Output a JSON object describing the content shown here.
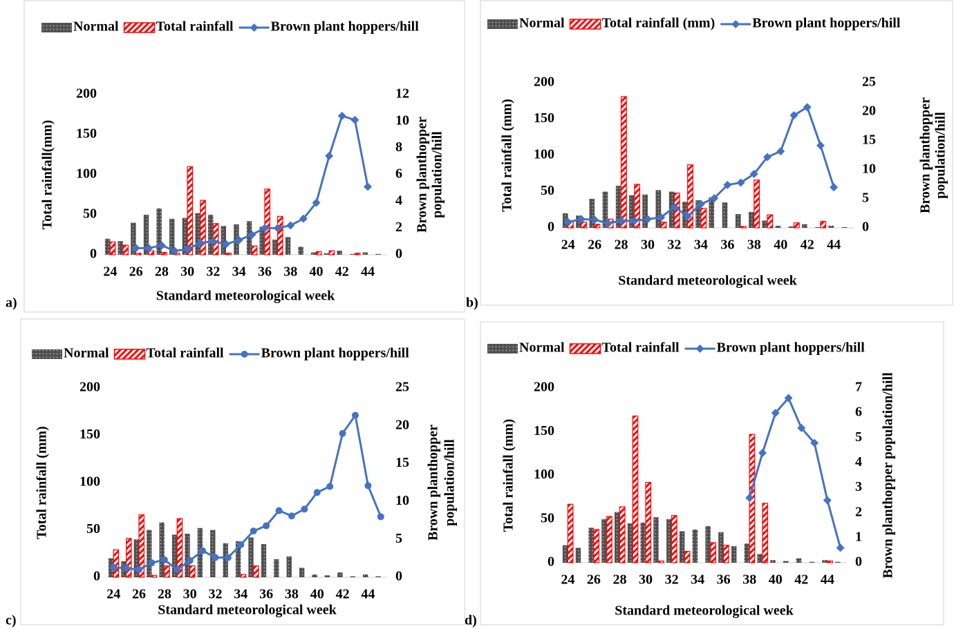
{
  "chart_data": [
    {
      "type": "combo",
      "panel_label": "a)",
      "x_label": "Standard meteorological week",
      "y_label": "Total rainfall(mm)",
      "y2_label": [
        "Brown planthopper",
        "population/hill"
      ],
      "categories": [
        24,
        null,
        26,
        null,
        28,
        null,
        30,
        null,
        32,
        null,
        34,
        null,
        36,
        null,
        38,
        null,
        40,
        null,
        42,
        null,
        44,
        null
      ],
      "ylim": [
        0,
        200
      ],
      "yticks": [
        0,
        50,
        100,
        150,
        200
      ],
      "y2lim": [
        0,
        12
      ],
      "y2ticks": [
        0,
        2,
        4,
        6,
        8,
        10,
        12
      ],
      "series": [
        {
          "name": "Normal",
          "type": "bar",
          "color": "#505050",
          "values": [
            20,
            17,
            40,
            50,
            58,
            45,
            46,
            52,
            50,
            36,
            38,
            42,
            35,
            19,
            22,
            10,
            3,
            2,
            5,
            1,
            3,
            1
          ]
        },
        {
          "name": "Total rainfall",
          "type": "bar",
          "color": "#ff0000",
          "values": [
            16,
            12,
            2,
            5,
            3,
            2,
            110,
            68,
            39,
            2,
            0,
            11,
            82,
            48,
            0,
            0,
            4,
            5,
            0,
            2,
            0,
            0
          ]
        },
        {
          "name": "Brown plant hoppers/hill",
          "type": "line",
          "axis": "y2",
          "marker": "diamond",
          "color": "#4472c4",
          "values": [
            null,
            null,
            0.5,
            0.5,
            0.7,
            0.3,
            0.4,
            0.9,
            1.0,
            0.8,
            1.1,
            1.5,
            2.0,
            2.0,
            2.2,
            2.7,
            3.9,
            7.4,
            10.4,
            10.1,
            5.1,
            null
          ]
        }
      ]
    },
    {
      "type": "combo",
      "panel_label": "b)",
      "x_label": "Standard meteorological week",
      "y_label": "Total rainfall (mm)",
      "y2_label": [
        "Brown planthopper",
        "population/hill"
      ],
      "categories": [
        24,
        null,
        26,
        null,
        28,
        null,
        30,
        null,
        32,
        null,
        34,
        null,
        36,
        null,
        38,
        null,
        40,
        null,
        42,
        null,
        44,
        null
      ],
      "ylim": [
        0,
        200
      ],
      "yticks": [
        0,
        50,
        100,
        150,
        200
      ],
      "y2lim": [
        0,
        25
      ],
      "y2ticks": [
        0,
        5,
        10,
        15,
        20,
        25
      ],
      "series": [
        {
          "name": "Normal",
          "type": "bar",
          "color": "#505050",
          "values": [
            20,
            17,
            40,
            50,
            58,
            45,
            46,
            52,
            50,
            36,
            38,
            42,
            35,
            19,
            22,
            10,
            3,
            2,
            5,
            1,
            3,
            1
          ]
        },
        {
          "name": "Total rainfall (mm)",
          "type": "bar",
          "color": "#ff0000",
          "values": [
            10,
            8,
            5,
            12,
            181,
            60,
            0,
            8,
            48,
            87,
            27,
            0,
            0,
            2,
            66,
            18,
            0,
            7,
            0,
            9,
            0,
            0
          ]
        },
        {
          "name": "Brown plant hoppers/hill",
          "type": "line",
          "axis": "y2",
          "marker": "diamond",
          "color": "#4472c4",
          "values": [
            1.0,
            1.5,
            1.4,
            0.8,
            1.2,
            1.2,
            1.5,
            1.8,
            3.6,
            2.0,
            4.1,
            5.1,
            7.4,
            7.8,
            9.3,
            12.2,
            13.2,
            19.4,
            20.8,
            14.2,
            7.0,
            null
          ]
        }
      ]
    },
    {
      "type": "combo",
      "panel_label": "c)",
      "x_label": "Standard meteorological week",
      "y_label": "Total rainfall (mm)",
      "y2_label": [
        "Brown planthopper",
        "population/hill"
      ],
      "categories": [
        24,
        null,
        26,
        null,
        28,
        null,
        30,
        null,
        32,
        null,
        34,
        null,
        36,
        null,
        38,
        null,
        40,
        null,
        42,
        null,
        44,
        null
      ],
      "ylim": [
        0,
        200
      ],
      "yticks": [
        0,
        50,
        100,
        150,
        200
      ],
      "y2lim": [
        0,
        25
      ],
      "y2ticks": [
        0,
        5,
        10,
        15,
        20,
        25
      ],
      "series": [
        {
          "name": "Normal",
          "type": "bar",
          "color": "#505050",
          "values": [
            20,
            17,
            40,
            50,
            58,
            45,
            46,
            52,
            50,
            36,
            38,
            42,
            35,
            19,
            22,
            10,
            3,
            2,
            5,
            1,
            3,
            1
          ]
        },
        {
          "name": "Total rainfall",
          "type": "bar",
          "color": "#ff0000",
          "values": [
            29,
            41,
            66,
            2,
            12,
            62,
            12,
            0,
            0,
            0,
            3,
            12,
            0,
            0,
            0,
            0,
            0,
            0,
            0,
            0,
            0,
            0
          ]
        },
        {
          "name": "Brown plant hoppers/hill",
          "type": "line",
          "axis": "y2",
          "marker": "circle",
          "color": "#4472c4",
          "values": [
            1.3,
            1.2,
            1.0,
            1.9,
            2.3,
            1.0,
            2.2,
            3.5,
            2.6,
            2.6,
            4.3,
            6.1,
            6.8,
            8.8,
            8.1,
            9.0,
            11.2,
            12.0,
            19.0,
            21.4,
            12.1,
            8.0
          ]
        }
      ]
    },
    {
      "type": "combo",
      "panel_label": "d)",
      "x_label": "Standard meteorological week",
      "y_label": "Total rainfall (mm)",
      "y2_label": [
        "Brown planthopper population/hill"
      ],
      "categories": [
        24,
        null,
        26,
        null,
        28,
        null,
        30,
        null,
        32,
        null,
        34,
        null,
        36,
        null,
        38,
        null,
        40,
        null,
        42,
        null,
        44,
        null
      ],
      "ylim": [
        0,
        200
      ],
      "yticks": [
        0,
        50,
        100,
        150,
        200
      ],
      "y2lim": [
        0,
        7
      ],
      "y2ticks": [
        0,
        1,
        2,
        3,
        4,
        5,
        6,
        7
      ],
      "series": [
        {
          "name": "Normal",
          "type": "bar",
          "color": "#505050",
          "values": [
            20,
            17,
            40,
            50,
            58,
            45,
            46,
            52,
            50,
            36,
            38,
            42,
            35,
            19,
            22,
            10,
            3,
            2,
            5,
            1,
            3,
            1
          ]
        },
        {
          "name": "Total rainfall",
          "type": "bar",
          "color": "#ff0000",
          "values": [
            67,
            0,
            38,
            53,
            64,
            168,
            92,
            2,
            54,
            13,
            0,
            23,
            20,
            0,
            147,
            68,
            0,
            0,
            0,
            0,
            2,
            0
          ]
        },
        {
          "name": "Brown plant hoppers/hill",
          "type": "line",
          "axis": "y2",
          "marker": "diamond",
          "color": "#4472c4",
          "values": [
            null,
            null,
            null,
            null,
            null,
            null,
            null,
            null,
            null,
            null,
            null,
            null,
            null,
            null,
            2.6,
            4.4,
            6.0,
            6.6,
            5.4,
            4.8,
            2.5,
            0.6
          ]
        }
      ]
    }
  ]
}
